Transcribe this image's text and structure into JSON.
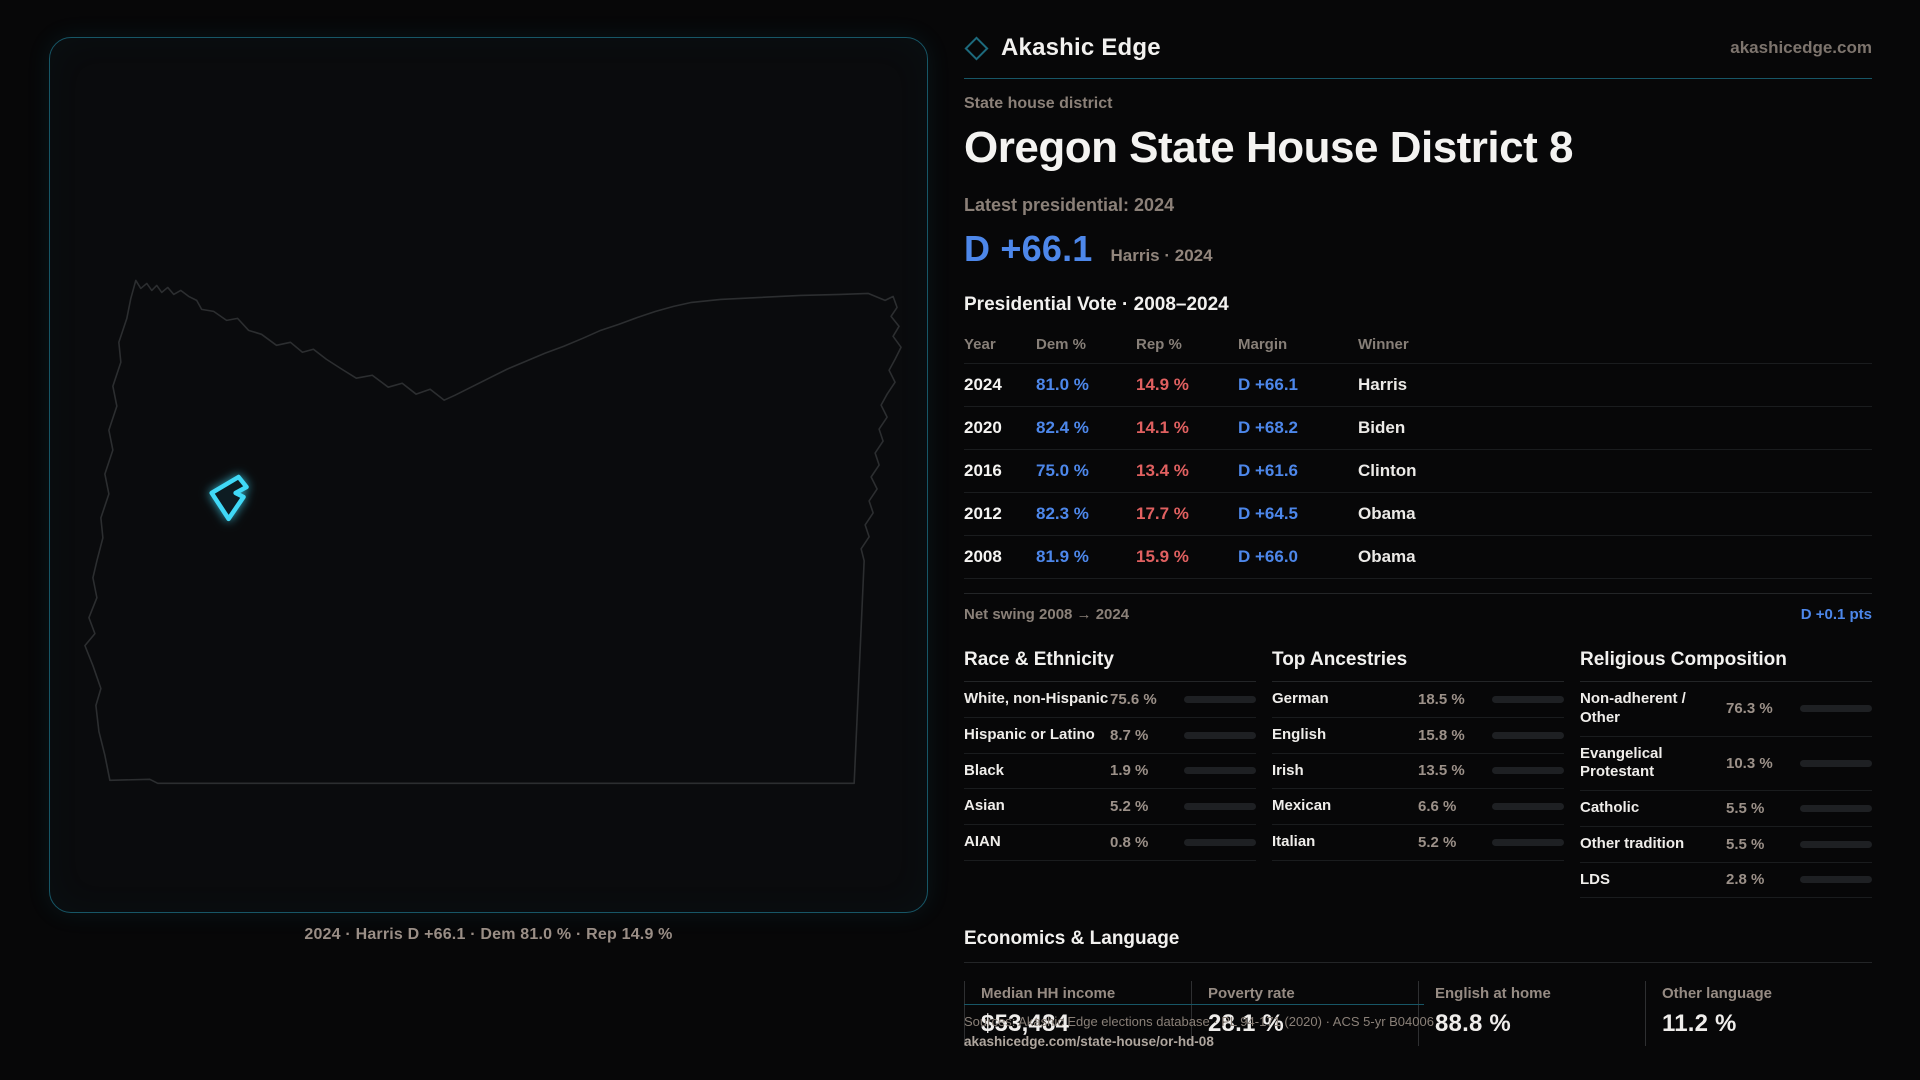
{
  "colors": {
    "dem": "#4D87EA",
    "rep": "#E06060",
    "teal": "#175666",
    "marker": "#3FD9F7"
  },
  "brand": {
    "name": "Akashic Edge",
    "domain": "akashicedge.com"
  },
  "map": {
    "caption": "2024 · Harris D +66.1 · Dem 81.0 % · Rep 14.9 %"
  },
  "header": {
    "kicker": "State house district",
    "title": "Oregon State House District 8",
    "latest_label": "Latest presidential: 2024",
    "margin_value": "D +66.1",
    "margin_context": "Harris · 2024"
  },
  "table": {
    "title": "Presidential Vote · 2008–2024",
    "columns": [
      "Year",
      "Dem %",
      "Rep %",
      "Margin",
      "Winner"
    ],
    "rows": [
      {
        "year": "2024",
        "dem": "81.0 %",
        "rep": "14.9 %",
        "margin": "D +66.1",
        "winner": "Harris"
      },
      {
        "year": "2020",
        "dem": "82.4 %",
        "rep": "14.1 %",
        "margin": "D +68.2",
        "winner": "Biden"
      },
      {
        "year": "2016",
        "dem": "75.0 %",
        "rep": "13.4 %",
        "margin": "D +61.6",
        "winner": "Clinton"
      },
      {
        "year": "2012",
        "dem": "82.3 %",
        "rep": "17.7 %",
        "margin": "D +64.5",
        "winner": "Obama"
      },
      {
        "year": "2008",
        "dem": "81.9 %",
        "rep": "15.9 %",
        "margin": "D +66.0",
        "winner": "Obama"
      }
    ]
  },
  "swing": {
    "label": "Net swing 2008 → 2024",
    "value": "D +0.1 pts"
  },
  "demographics": {
    "race": {
      "title": "Race & Ethnicity",
      "rows": [
        {
          "label": "White, non-Hispanic",
          "value": "75.6 %",
          "pct": 75.6,
          "color": "#8CA0BC"
        },
        {
          "label": "Hispanic or Latino",
          "value": "8.7 %",
          "pct": 8.7,
          "color": "#E09B3E"
        },
        {
          "label": "Black",
          "value": "1.9 %",
          "pct": 1.9,
          "color": "#8577E0"
        },
        {
          "label": "Asian",
          "value": "5.2 %",
          "pct": 5.2,
          "color": "#33B78E"
        },
        {
          "label": "AIAN",
          "value": "0.8 %",
          "pct": 0.8,
          "color": "#C98038"
        }
      ]
    },
    "ancestries": {
      "title": "Top Ancestries",
      "rows": [
        {
          "label": "German",
          "value": "18.5 %",
          "pct": 18.5,
          "color": "#8CA0BC"
        },
        {
          "label": "English",
          "value": "15.8 %",
          "pct": 15.8,
          "color": "#8CA0BC"
        },
        {
          "label": "Irish",
          "value": "13.5 %",
          "pct": 13.5,
          "color": "#8CA0BC"
        },
        {
          "label": "Mexican",
          "value": "6.6 %",
          "pct": 6.6,
          "color": "#E0A33C"
        },
        {
          "label": "Italian",
          "value": "5.2 %",
          "pct": 5.2,
          "color": "#8CA0BC"
        }
      ]
    },
    "religion": {
      "title": "Religious Composition",
      "rows": [
        {
          "label": "Non-adherent / Other",
          "value": "76.3 %",
          "pct": 76.3,
          "color": "#6E7D94"
        },
        {
          "label": "Evangelical Protestant",
          "value": "10.3 %",
          "pct": 10.3,
          "color": "#E26E6E"
        },
        {
          "label": "Catholic",
          "value": "5.5 %",
          "pct": 5.5,
          "color": "#D9AE3E"
        },
        {
          "label": "Other tradition",
          "value": "5.5 %",
          "pct": 5.5,
          "color": "#8C96A8"
        },
        {
          "label": "LDS",
          "value": "2.8 %",
          "pct": 2.8,
          "color": "#27BFB2"
        }
      ]
    }
  },
  "economics": {
    "title": "Economics & Language",
    "stats": [
      {
        "label": "Median HH income",
        "value": "$53,484"
      },
      {
        "label": "Poverty rate",
        "value": "28.1 %"
      },
      {
        "label": "English at home",
        "value": "88.8 %"
      },
      {
        "label": "Other language",
        "value": "11.2 %"
      }
    ]
  },
  "footer": {
    "sources": "Sources: Akashic Edge elections database · PL 94-171 (2020) · ACS 5-yr B04006",
    "link": "akashicedge.com/state-house/or-hd-08"
  }
}
